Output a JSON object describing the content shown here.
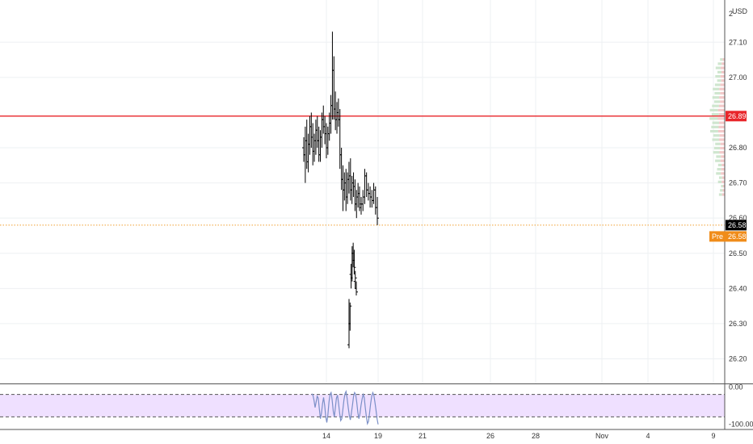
{
  "currency_label": "USD",
  "colors": {
    "grid": "#eef0f3",
    "price": "#000000",
    "red_line": "#e8252a",
    "orange_line": "#f0a030",
    "last_badge": "#000000",
    "pre_badge": "#f08c1a",
    "osc_fill": "#efe0ff",
    "osc_line": "#7b8fc7",
    "vp_up": "#cfe6cf",
    "vp_down": "#f3c9c9"
  },
  "chart_data": [
    {
      "type": "ohlc",
      "y_ticks": [
        "27.10",
        "27.00",
        "26.80",
        "26.70",
        "26.60",
        "26.50",
        "26.40",
        "26.30",
        "26.20"
      ],
      "y_tick_values": [
        27.1,
        27.0,
        26.8,
        26.7,
        26.6,
        26.5,
        26.4,
        26.3,
        26.2
      ],
      "top_partial_label": "2",
      "ylim": [
        26.13,
        27.22
      ],
      "x_tick_labels": [
        "14",
        "19",
        "21",
        "26",
        "28",
        "Nov",
        "4",
        "9"
      ],
      "horizontal_lines": [
        {
          "value": 26.89,
          "label": "26.89",
          "style": "solid",
          "color": "#e8252a"
        },
        {
          "value": 26.58,
          "label": "26.58",
          "style": "dotted",
          "color": "#f0a030"
        }
      ],
      "last_price_label": "26.58",
      "pre_market": {
        "prefix": "Pre",
        "value": "26.58"
      },
      "bars_zone_a": [
        [
          26.8,
          26.83,
          26.76,
          26.78
        ],
        [
          26.78,
          26.86,
          26.7,
          26.82
        ],
        [
          26.82,
          26.88,
          26.74,
          26.76
        ],
        [
          26.76,
          26.84,
          26.73,
          26.81
        ],
        [
          26.81,
          26.89,
          26.78,
          26.86
        ],
        [
          26.86,
          26.9,
          26.8,
          26.83
        ],
        [
          26.83,
          26.87,
          26.75,
          26.79
        ],
        [
          26.79,
          26.84,
          26.76,
          26.82
        ],
        [
          26.82,
          26.88,
          26.78,
          26.85
        ],
        [
          26.85,
          26.89,
          26.8,
          26.82
        ],
        [
          26.82,
          26.86,
          26.76,
          26.78
        ],
        [
          26.78,
          26.85,
          26.76,
          26.83
        ],
        [
          26.83,
          26.9,
          26.8,
          26.88
        ],
        [
          26.88,
          26.92,
          26.84,
          26.86
        ],
        [
          26.86,
          26.89,
          26.81,
          26.84
        ],
        [
          26.84,
          26.87,
          26.77,
          26.8
        ],
        [
          26.8,
          26.86,
          26.78,
          26.84
        ],
        [
          26.84,
          26.9,
          26.82,
          26.87
        ],
        [
          26.87,
          26.95,
          26.84,
          26.92
        ],
        [
          26.92,
          27.13,
          26.88,
          27.02
        ],
        [
          27.02,
          27.06,
          26.88,
          26.91
        ],
        [
          26.91,
          26.96,
          26.85,
          26.88
        ],
        [
          26.88,
          26.93,
          26.84,
          26.9
        ],
        [
          26.9,
          26.94,
          26.86,
          26.88
        ],
        [
          26.88,
          26.91,
          26.74,
          26.78
        ],
        [
          26.78,
          26.8,
          26.68,
          26.71
        ],
        [
          26.71,
          26.75,
          26.62,
          26.68
        ],
        [
          26.68,
          26.73,
          26.65,
          26.7
        ],
        [
          26.7,
          26.74,
          26.62,
          26.66
        ],
        [
          26.66,
          26.73,
          26.64,
          26.71
        ],
        [
          26.71,
          26.76,
          26.67,
          26.72
        ],
        [
          26.72,
          26.77,
          26.65,
          26.68
        ],
        [
          26.68,
          26.72,
          26.64,
          26.7
        ],
        [
          26.7,
          26.73,
          26.66,
          26.69
        ],
        [
          26.69,
          26.71,
          26.62,
          26.64
        ],
        [
          26.64,
          26.68,
          26.6,
          26.66
        ],
        [
          26.66,
          26.7,
          26.63,
          26.67
        ],
        [
          26.67,
          26.69,
          26.62,
          26.64
        ]
      ],
      "bars_zone_b": [
        [
          26.63,
          26.66,
          26.61,
          26.64
        ],
        [
          26.64,
          26.68,
          26.62,
          26.66
        ],
        [
          26.66,
          26.74,
          26.64,
          26.72
        ],
        [
          26.72,
          26.73,
          26.66,
          26.68
        ],
        [
          26.68,
          26.7,
          26.65,
          26.67
        ],
        [
          26.67,
          26.69,
          26.63,
          26.66
        ],
        [
          26.66,
          26.68,
          26.63,
          26.65
        ],
        [
          26.65,
          26.7,
          26.64,
          26.68
        ],
        [
          26.68,
          26.69,
          26.61,
          26.63
        ],
        [
          26.63,
          26.66,
          26.58,
          26.6
        ]
      ],
      "bars_low": [
        [
          26.24,
          26.37,
          26.23,
          26.3
        ],
        [
          26.3,
          26.36,
          26.28,
          26.35
        ],
        [
          26.44,
          26.47,
          26.4,
          26.43
        ],
        [
          26.43,
          26.52,
          26.42,
          26.5
        ],
        [
          26.5,
          26.53,
          26.46,
          26.48
        ],
        [
          26.48,
          26.51,
          26.44,
          26.46
        ],
        [
          26.42,
          26.45,
          26.4,
          26.43
        ],
        [
          26.4,
          26.42,
          26.38,
          26.39
        ]
      ]
    },
    {
      "type": "line",
      "y_ticks": [
        "0.00",
        "-100.00"
      ],
      "ylim": [
        -105,
        5
      ],
      "band": [
        -20,
        -80
      ],
      "values": [
        -18,
        -22,
        -35,
        -55,
        -40,
        -25,
        -30,
        -60,
        -85,
        -70,
        -45,
        -28,
        -50,
        -80,
        -95,
        -75,
        -40,
        -20,
        -15,
        -35,
        -65,
        -80,
        -55,
        -30,
        -22,
        -45,
        -70,
        -90,
        -85,
        -60,
        -35,
        -18,
        -12,
        -30,
        -55,
        -75,
        -88,
        -70,
        -48,
        -25,
        -15,
        -20,
        -40,
        -68,
        -85,
        -72,
        -50,
        -32,
        -20,
        -28,
        -55,
        -80,
        -98,
        -92,
        -70,
        -45,
        -25,
        -15,
        -22,
        -40,
        -62,
        -85,
        -100
      ]
    }
  ]
}
